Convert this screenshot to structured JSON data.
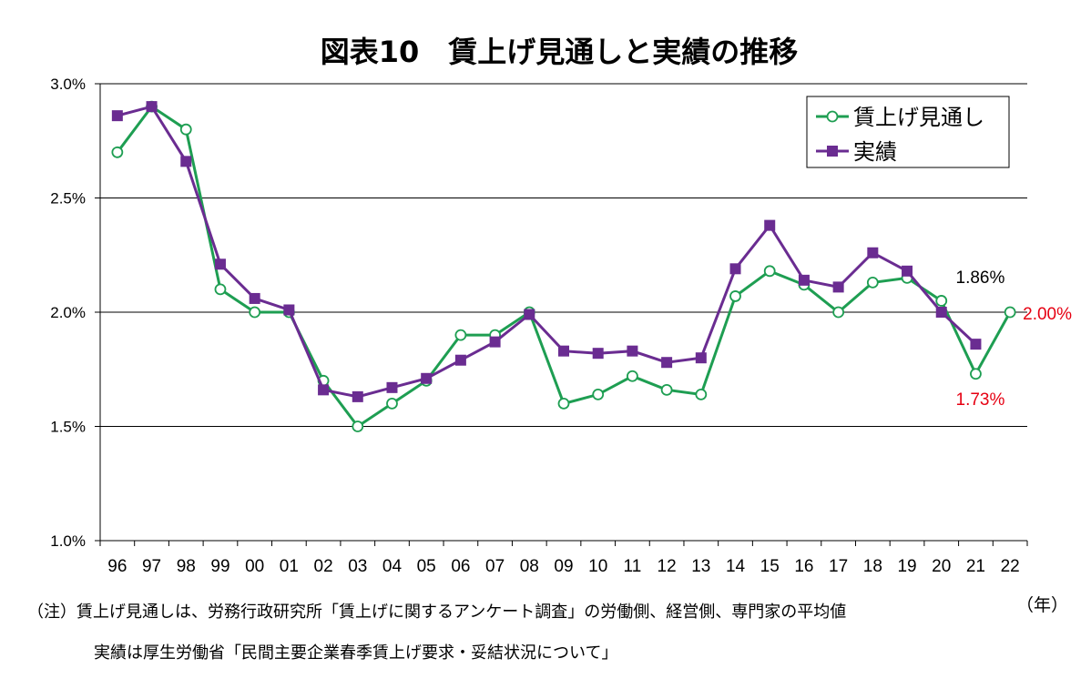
{
  "chart_data": {
    "type": "line",
    "title": "図表10　賃上げ見通しと実績の推移",
    "categories": [
      "96",
      "97",
      "98",
      "99",
      "00",
      "01",
      "02",
      "03",
      "04",
      "05",
      "06",
      "07",
      "08",
      "09",
      "10",
      "11",
      "12",
      "13",
      "14",
      "15",
      "16",
      "17",
      "18",
      "19",
      "20",
      "21",
      "22"
    ],
    "xunit": "（年）",
    "ylim": [
      1.0,
      3.0
    ],
    "yticks": [
      "1.0%",
      "1.5%",
      "2.0%",
      "2.5%",
      "3.0%"
    ],
    "ytick_values": [
      1.0,
      1.5,
      2.0,
      2.5,
      3.0
    ],
    "series": [
      {
        "name": "賃上げ見通し",
        "color": "#1e9e52",
        "marker": "open-circle",
        "values": [
          2.7,
          2.9,
          2.8,
          2.1,
          2.0,
          2.0,
          1.7,
          1.5,
          1.6,
          1.7,
          1.9,
          1.9,
          2.0,
          1.6,
          1.64,
          1.72,
          1.66,
          1.64,
          2.07,
          2.18,
          2.12,
          2.0,
          2.13,
          2.15,
          2.05,
          1.73,
          2.0
        ]
      },
      {
        "name": "実績",
        "color": "#6a2c91",
        "marker": "filled-square",
        "values": [
          2.86,
          2.9,
          2.66,
          2.21,
          2.06,
          2.01,
          1.66,
          1.63,
          1.67,
          1.71,
          1.79,
          1.87,
          1.99,
          1.83,
          1.82,
          1.83,
          1.78,
          1.8,
          2.19,
          2.38,
          2.14,
          2.11,
          2.26,
          2.18,
          2.0,
          1.86,
          null
        ]
      }
    ],
    "legend_position": "top-right",
    "grid": "horizontal",
    "annotations": [
      {
        "text": "1.86%",
        "color": "#000000",
        "series": 1,
        "index": 25
      },
      {
        "text": "1.73%",
        "color": "#e60012",
        "series": 0,
        "index": 25
      },
      {
        "text": "2.00%",
        "color": "#e60012",
        "series": 0,
        "index": 26
      }
    ]
  },
  "notes": {
    "line1": "（注）賃上げ見通しは、労務行政研究所「賃上げに関するアンケート調査」の労働側、経営側、専門家の平均値",
    "line2": "実績は厚生労働省「民間主要企業春季賃上げ要求・妥結状況について」"
  }
}
